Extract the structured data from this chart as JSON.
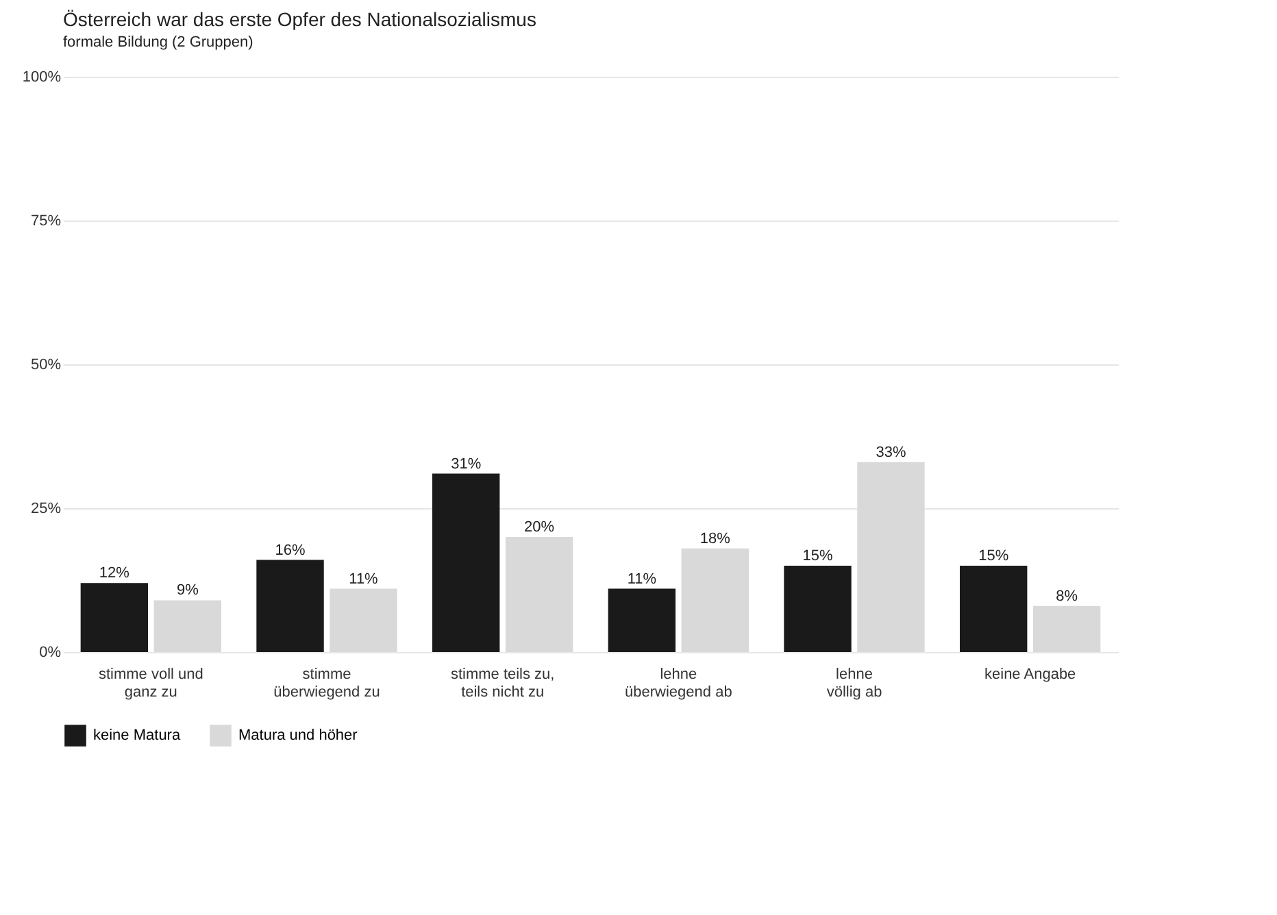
{
  "chart_data": {
    "type": "bar",
    "title": "Österreich war das erste Opfer des Nationalsozialismus",
    "subtitle": "formale Bildung (2 Gruppen)",
    "categories": [
      "stimme voll und\nganz zu",
      "stimme\nüberwiegend zu",
      "stimme teils zu,\nteils nicht zu",
      "lehne\nüberwiegend ab",
      "lehne\nvöllig ab",
      "keine Angabe"
    ],
    "series": [
      {
        "name": "keine Matura",
        "color": "#1a1a1a",
        "values": [
          12,
          16,
          31,
          11,
          15,
          15
        ],
        "value_labels": [
          "12%",
          "16%",
          "31%",
          "11%",
          "15%",
          "15%"
        ]
      },
      {
        "name": "Matura und höher",
        "color": "#d9d9d9",
        "values": [
          9,
          11,
          20,
          18,
          33,
          8
        ],
        "value_labels": [
          "9%",
          "11%",
          "20%",
          "18%",
          "33%",
          "8%"
        ]
      }
    ],
    "ylim": [
      0,
      100
    ],
    "yticks": [
      {
        "value": 0,
        "label": "0%"
      },
      {
        "value": 25,
        "label": "25%"
      },
      {
        "value": 50,
        "label": "50%"
      },
      {
        "value": 75,
        "label": "75%"
      },
      {
        "value": 100,
        "label": "100%"
      }
    ],
    "grid": "y",
    "legend": "bottom"
  }
}
